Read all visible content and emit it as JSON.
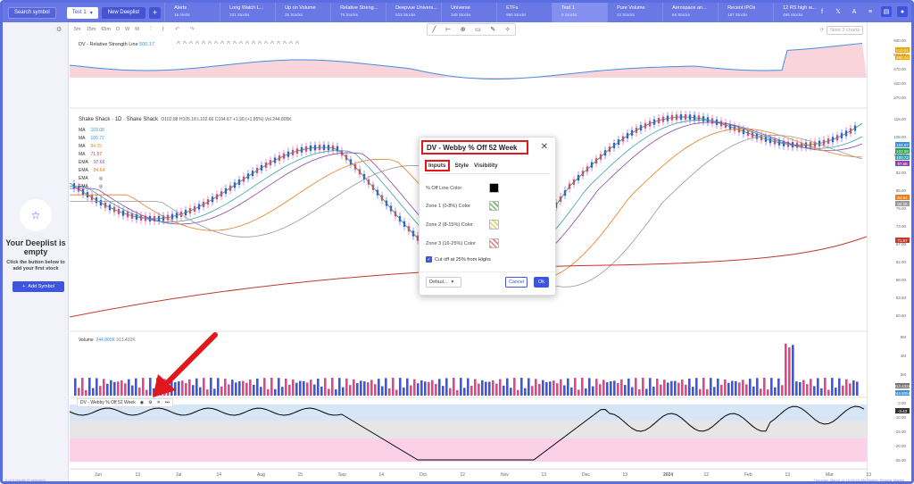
{
  "topbar": {
    "search_label": "Search symbol",
    "current_list": "Test 1",
    "new_deeplist": "New Deeplist",
    "plus": "+",
    "tabs": [
      {
        "title": "Alerts",
        "sub": "16 Alerts"
      },
      {
        "title": "Long Watch L...",
        "sub": "331 Stocks"
      },
      {
        "title": "Up on Volume",
        "sub": "25 Stocks"
      },
      {
        "title": "Relative Streng...",
        "sub": "75 Stocks"
      },
      {
        "title": "Deepvue Univers...",
        "sub": "523 Stocks"
      },
      {
        "title": "Universe",
        "sub": "349 Stocks"
      },
      {
        "title": "ETFs",
        "sub": "950 Stocks"
      },
      {
        "title": "Test 1",
        "sub": "0 Stocks"
      },
      {
        "title": "Pure Volume",
        "sub": "24 Stocks"
      },
      {
        "title": "Aerospace an...",
        "sub": "66 Stocks"
      },
      {
        "title": "Recent IPOs",
        "sub": "187 Stocks"
      },
      {
        "title": "12 RS high w...",
        "sub": "466 Stocks"
      }
    ]
  },
  "sidebar": {
    "empty_title": "Your Deeplist is empty",
    "empty_sub": "Click the button below to add your first stock",
    "add_label": "Add Symbol"
  },
  "toolbar": {
    "timeframes": [
      "5m",
      "15m",
      "65m",
      "D",
      "W",
      "M"
    ],
    "snap_text": "Note 3 charts"
  },
  "rs_pane": {
    "label": "DV - Relative Strength Line",
    "value": "500.17",
    "axis": [
      "600.00",
      "550.00",
      "470.00",
      "420.00",
      "370.00"
    ],
    "tags": [
      {
        "text": "610.51",
        "color": "#f0a500"
      },
      {
        "text": "580.04",
        "color": "#f0a500"
      }
    ]
  },
  "price_pane": {
    "title": "Shake Shack · 1D · Shake Shack",
    "ohlc": "O102.88 H105.18 L102.66 C104.67 +1.90 (+1.85%) Vol 244.805K",
    "ma_rows": [
      {
        "name": "MA",
        "val": "103.08",
        "color": "#3aa0a8"
      },
      {
        "name": "MA",
        "val": "100.72",
        "color": "#3a9fe0"
      },
      {
        "name": "MA",
        "val": "84.25",
        "color": "#c89a2e"
      },
      {
        "name": "MA",
        "val": "71.57",
        "color": "#c0392b"
      },
      {
        "name": "EMA",
        "val": "97.66",
        "color": "#8e44ad"
      },
      {
        "name": "EMA",
        "val": "84.64",
        "color": "#e67e22"
      },
      {
        "name": "EMA",
        "val": "",
        "color": "#999999"
      },
      {
        "name": "EMA",
        "val": "",
        "color": "#999999"
      }
    ],
    "axis": [
      "116.00",
      "108.00",
      "100.00",
      "92.00",
      "85.00",
      "79.00",
      "73.00",
      "67.00",
      "62.00",
      "58.00",
      "53.50",
      "50.60"
    ],
    "tags": [
      {
        "text": "104.67",
        "color": "#3f8fe0"
      },
      {
        "text": "103.08",
        "color": "#2e9e4f"
      },
      {
        "text": "100.72",
        "color": "#3aa0a8"
      },
      {
        "text": "97.66",
        "color": "#8e44ad"
      },
      {
        "text": "84.64",
        "color": "#e67e22"
      },
      {
        "text": "84.25",
        "color": "#999999"
      },
      {
        "text": "71.57",
        "color": "#c0392b"
      }
    ],
    "event_marks": [
      "E",
      "E",
      "E"
    ]
  },
  "volume_pane": {
    "label": "Volume",
    "val1": "244.805K",
    "val2": "913.432K",
    "axis": [
      "6M",
      "4M",
      "2M"
    ],
    "tags": [
      {
        "text": "913.432K",
        "color": "#777777"
      },
      {
        "text": "244.805K",
        "color": "#3f8fe0"
      }
    ]
  },
  "webby_pane": {
    "label": "DV - Webby % Off 52 Week",
    "axis": [
      "0.00",
      "-10.00",
      "-15.00",
      "-20.00",
      "-25.00"
    ],
    "tag": "-3.43"
  },
  "xaxis": [
    "Jun",
    "13",
    "Jul",
    "14",
    "Aug",
    "15",
    "Sep",
    "14",
    "Oct",
    "12",
    "Nov",
    "13",
    "Dec",
    "13",
    "2024",
    "12",
    "Feb",
    "13",
    "Mar",
    "13"
  ],
  "dialog": {
    "title": "DV - Webby % Off 52 Week",
    "tabs": [
      "Inputs",
      "Style",
      "Visibility"
    ],
    "rows": [
      {
        "label": "% Off Line Color",
        "color": "#000000"
      },
      {
        "label": "Zone 1 (0-8%) Color",
        "color": "#7bc67e"
      },
      {
        "label": "Zone 2 (8-15%) Color",
        "color": "#e8d77a"
      },
      {
        "label": "Zone 3 (16-25%) Color",
        "color": "#e88a8a"
      }
    ],
    "checkbox": "Cut off at 25% from Highs",
    "defaults": "Defaul...",
    "cancel": "Cancel",
    "ok": "Ok"
  },
  "status": {
    "left": "0 of 0 results (0 selected)",
    "right": "Thursday, March 14 10:09:15 AM   Market: Regular Market"
  },
  "watermark": "Hol                                     re"
}
